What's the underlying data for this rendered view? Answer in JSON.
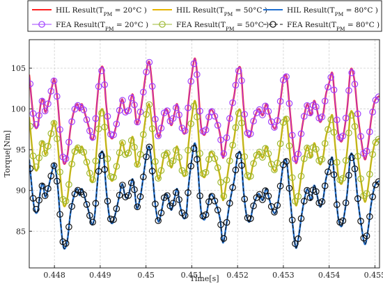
{
  "chart_data": {
    "type": "line",
    "xlabel": "Time[s]",
    "ylabel": "Torque[Nm]",
    "xlim": [
      0.44745,
      0.4551
    ],
    "ylim": [
      80.5,
      108.5
    ],
    "xticks": [
      0.448,
      0.449,
      0.45,
      0.451,
      0.452,
      0.453,
      0.454,
      0.455
    ],
    "xtick_labels": [
      "0.448",
      "0.449",
      "0.45",
      "0.451",
      "0.452",
      "0.453",
      "0.454",
      "0.455"
    ],
    "yticks": [
      85,
      90,
      95,
      100,
      105
    ],
    "ytick_labels": [
      "85",
      "90",
      "95",
      "100",
      "105"
    ],
    "grid": true,
    "legend_position": "top",
    "base_x": [
      0.44745,
      0.44755,
      0.44763,
      0.4477,
      0.44775,
      0.4478,
      0.44787,
      0.44795,
      0.448,
      0.44807,
      0.44813,
      0.4482,
      0.44828,
      0.44835,
      0.44843,
      0.4485,
      0.44855,
      0.4486,
      0.44868,
      0.44875,
      0.44882,
      0.44888,
      0.44893,
      0.449,
      0.44907,
      0.44913,
      0.4492,
      0.44927,
      0.44935,
      0.44942,
      0.44948,
      0.44955,
      0.44962,
      0.4497,
      0.44975,
      0.4498,
      0.44987,
      0.44993,
      0.45,
      0.45007,
      0.45013,
      0.4502,
      0.45027,
      0.45033,
      0.4504,
      0.45047,
      0.45055,
      0.45062,
      0.45068,
      0.45075,
      0.45082,
      0.45088,
      0.45093,
      0.451,
      0.45107,
      0.45113,
      0.4512,
      0.45127,
      0.45133,
      0.4514,
      0.45147,
      0.45155,
      0.45162,
      0.45168,
      0.45175,
      0.45182,
      0.45188,
      0.45193,
      0.452,
      0.45207,
      0.45213,
      0.4522,
      0.45227,
      0.45233,
      0.4524,
      0.45247,
      0.45255,
      0.45262,
      0.45268,
      0.45275,
      0.45282,
      0.45288,
      0.45295,
      0.453,
      0.45307,
      0.45313,
      0.4532,
      0.45327,
      0.45333,
      0.4534,
      0.45347,
      0.45353,
      0.4536,
      0.45367,
      0.45373,
      0.4538,
      0.45387,
      0.45393,
      0.454,
      0.45407,
      0.45413,
      0.4542,
      0.45427,
      0.45433,
      0.4544,
      0.45447,
      0.45455,
      0.45462,
      0.4547,
      0.45478,
      0.45485,
      0.45492,
      0.455,
      0.4551
    ],
    "base_y": [
      104.2,
      98.6,
      97.8,
      100.6,
      101.2,
      99.6,
      100.8,
      102.8,
      103.6,
      101.0,
      96.8,
      93.4,
      94.2,
      97.6,
      99.8,
      100.6,
      99.8,
      100.6,
      99.2,
      97.8,
      96.2,
      97.4,
      100.8,
      104.6,
      104.8,
      100.6,
      97.2,
      96.4,
      98.0,
      99.8,
      101.2,
      99.6,
      99.8,
      101.8,
      100.4,
      98.2,
      99.4,
      101.6,
      104.4,
      105.8,
      103.2,
      98.8,
      96.6,
      97.6,
      99.6,
      99.8,
      98.0,
      99.4,
      100.6,
      98.4,
      97.0,
      97.6,
      101.0,
      104.2,
      106.2,
      103.4,
      98.0,
      96.8,
      97.8,
      99.8,
      99.6,
      98.4,
      96.8,
      94.0,
      96.0,
      98.6,
      100.4,
      101.8,
      104.6,
      104.8,
      100.4,
      97.2,
      96.6,
      98.2,
      99.4,
      100.0,
      99.2,
      100.6,
      99.6,
      98.2,
      97.6,
      98.8,
      101.6,
      103.6,
      104.0,
      100.6,
      96.4,
      93.4,
      94.6,
      97.4,
      99.6,
      100.6,
      99.2,
      101.0,
      100.0,
      98.4,
      99.4,
      101.8,
      103.2,
      104.4,
      100.8,
      97.0,
      96.0,
      97.4,
      100.4,
      104.8,
      103.6,
      99.6,
      96.2,
      93.8,
      95.6,
      98.8,
      101.0,
      101.6
    ],
    "series": [
      {
        "name": "HIL Result(T<sub>PM</sub> = 20°C )",
        "legend_text": "HIL Result(T",
        "legend_sub": "PM",
        "legend_rest": " = 20°C )",
        "color": "#ff2020",
        "style": "solid-thick",
        "marker": "none",
        "offset": 0
      },
      {
        "name": "FEA Result(T<sub>PM</sub> = 20°C )",
        "legend_text": "FEA Result(T",
        "legend_sub": "PM",
        "legend_rest": " = 20°C )",
        "color": "#a040ff",
        "style": "solid-thin",
        "marker": "circle",
        "offset": 0
      },
      {
        "name": "HIL Result(T<sub>PM</sub> = 50°C )",
        "legend_text": "HIL Result(T",
        "legend_sub": "PM",
        "legend_rest": " = 50°C )",
        "color": "#e6b400",
        "style": "solid-thick",
        "marker": "none",
        "offset": -5.2
      },
      {
        "name": "FEA Result(T<sub>PM</sub> = 50°C )",
        "legend_text": "FEA Result(T",
        "legend_sub": "PM",
        "legend_rest": " = 50°C )",
        "color": "#9cb832",
        "style": "solid-thin",
        "marker": "circle",
        "offset": -5.2
      },
      {
        "name": "HIL Result(T<sub>PM</sub> = 80°C )",
        "legend_text": "HIL Result(T",
        "legend_sub": "PM",
        "legend_rest": " = 80°C )",
        "color": "#1f6fd0",
        "style": "solid-thick",
        "marker": "none",
        "offset": -10.4
      },
      {
        "name": "FEA Result(T<sub>PM</sub> = 80°C )",
        "legend_text": "FEA Result(T",
        "legend_sub": "PM",
        "legend_rest": " = 80°C )",
        "color": "#111111",
        "style": "dashed",
        "marker": "circle",
        "offset": -10.4
      }
    ]
  }
}
